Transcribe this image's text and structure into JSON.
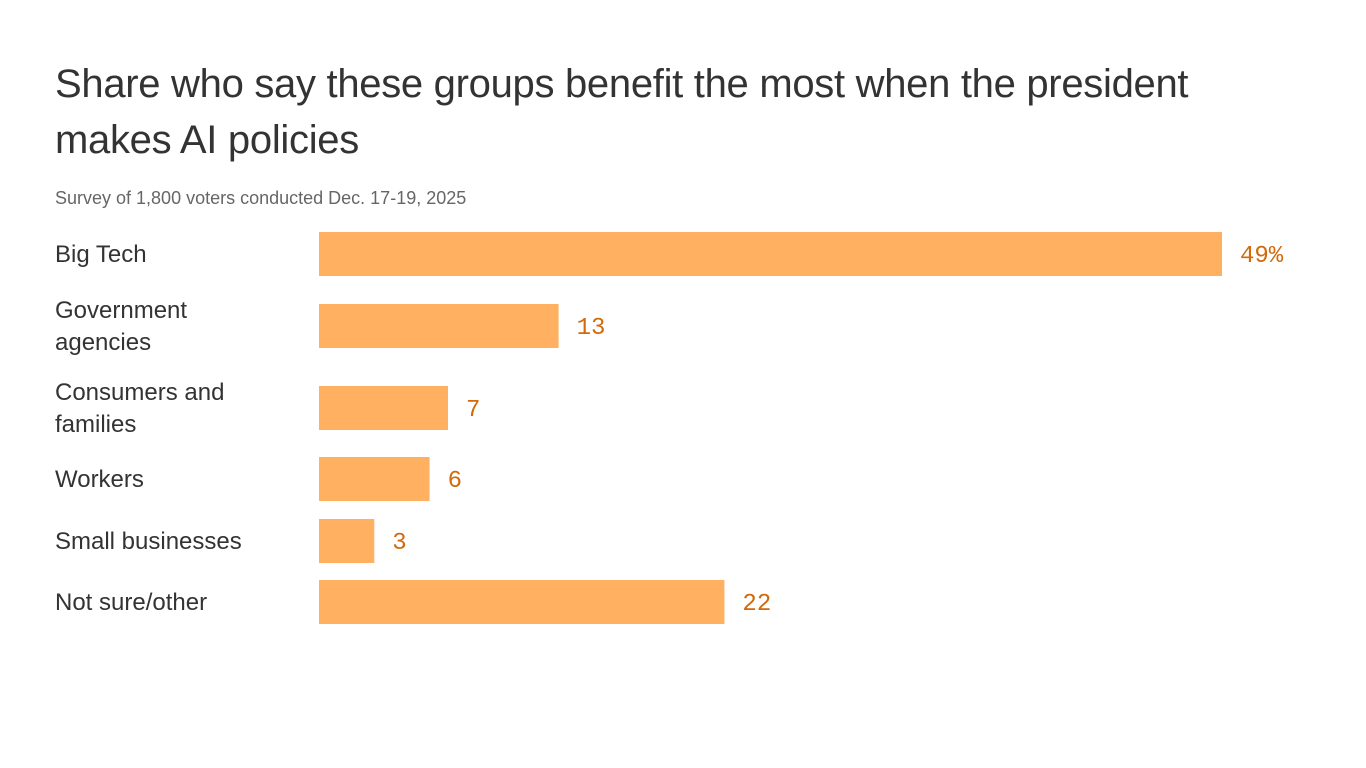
{
  "chart_data": {
    "type": "bar",
    "orientation": "horizontal",
    "title": "Share who say these groups benefit the most when the president makes AI policies",
    "subtitle": "Survey of 1,800 voters conducted Dec. 17-19, 2025",
    "categories": [
      "Big Tech",
      "Government agencies",
      "Consumers and families",
      "Workers",
      "Small businesses",
      "Not sure/other"
    ],
    "category_lines": [
      [
        "Big Tech"
      ],
      [
        "Government",
        "agencies"
      ],
      [
        "Consumers and",
        "families"
      ],
      [
        "Workers"
      ],
      [
        "Small businesses"
      ],
      [
        "Not sure/other"
      ]
    ],
    "values": [
      49,
      13,
      7,
      6,
      3,
      22
    ],
    "value_labels": [
      "49%",
      "13",
      "7",
      "6",
      "3",
      "22"
    ],
    "xlim": [
      0,
      49
    ],
    "grid": false,
    "bar_color": "#ffb060",
    "label_color": "#d2690a"
  }
}
